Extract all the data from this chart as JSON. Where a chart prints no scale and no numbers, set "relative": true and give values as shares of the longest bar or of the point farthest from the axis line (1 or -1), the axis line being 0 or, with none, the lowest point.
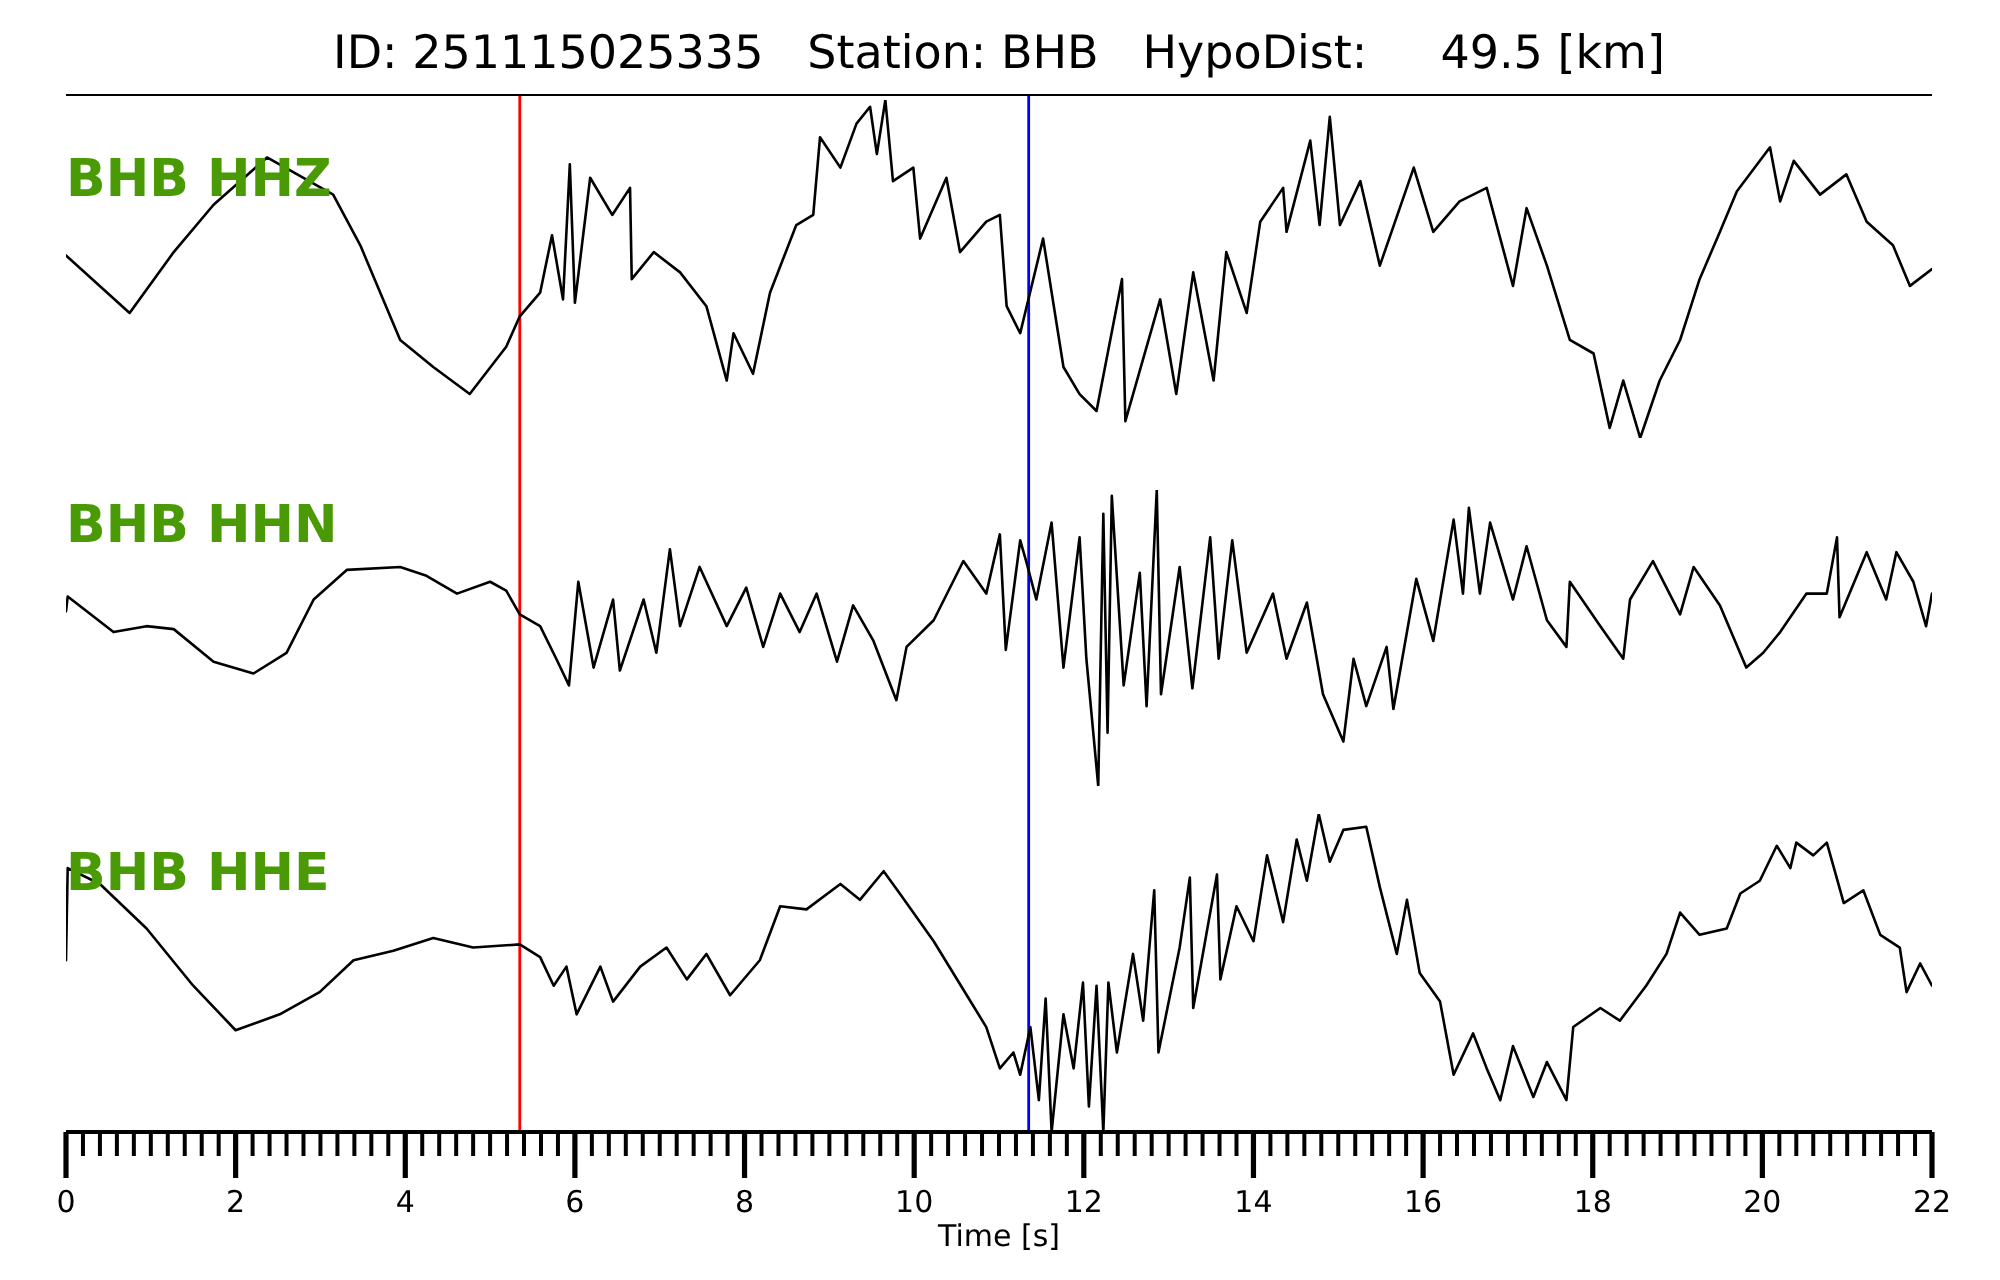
{
  "chart_data": [
    {
      "type": "line",
      "title": "ID: 251115025335   Station: BHB   HypoDist:     49.5 [km]",
      "relative": true,
      "xlim": [
        0,
        22
      ],
      "tick_labels": false,
      "x": [
        0,
        0.75,
        1.27,
        1.74,
        2.37,
        3.15,
        3.47,
        3.94,
        4.33,
        4.76,
        5.19,
        5.35,
        5.59,
        5.73,
        5.86,
        5.94,
        6.0,
        6.18,
        6.44,
        6.65,
        6.67,
        6.93,
        7.24,
        7.55,
        7.79,
        7.87,
        8.1,
        8.3,
        8.61,
        8.81,
        8.89,
        9.13,
        9.32,
        9.48,
        9.56,
        9.66,
        9.75,
        9.99,
        10.07,
        10.38,
        10.54,
        10.85,
        11.01,
        11.09,
        11.25,
        11.52,
        11.76,
        11.95,
        12.15,
        12.45,
        12.49,
        12.9,
        13.09,
        13.29,
        13.53,
        13.68,
        13.92,
        14.08,
        14.35,
        14.39,
        14.67,
        14.78,
        14.9,
        15.02,
        15.26,
        15.49,
        15.89,
        16.12,
        16.43,
        16.75,
        17.06,
        17.22,
        17.46,
        17.73,
        18.01,
        18.2,
        18.36,
        18.56,
        18.79,
        19.03,
        19.26,
        19.5,
        19.7,
        20.09,
        20.21,
        20.37,
        20.68,
        20.99,
        21.23,
        21.54,
        21.74,
        22
      ],
      "series": [
        {
          "name": "BHB HHZ",
          "color": "#000000",
          "values": [
            0.54,
            0.37,
            0.55,
            0.69,
            0.83,
            0.72,
            0.57,
            0.29,
            0.21,
            0.13,
            0.27,
            0.36,
            0.43,
            0.6,
            0.41,
            0.81,
            0.4,
            0.77,
            0.66,
            0.74,
            0.47,
            0.55,
            0.49,
            0.39,
            0.17,
            0.31,
            0.19,
            0.43,
            0.63,
            0.66,
            0.89,
            0.8,
            0.93,
            0.98,
            0.84,
            1.0,
            0.76,
            0.8,
            0.59,
            0.77,
            0.55,
            0.64,
            0.66,
            0.39,
            0.31,
            0.59,
            0.21,
            0.13,
            0.08,
            0.47,
            0.05,
            0.41,
            0.13,
            0.49,
            0.17,
            0.55,
            0.37,
            0.64,
            0.74,
            0.61,
            0.88,
            0.63,
            0.95,
            0.63,
            0.76,
            0.51,
            0.8,
            0.61,
            0.7,
            0.74,
            0.45,
            0.68,
            0.51,
            0.29,
            0.25,
            0.03,
            0.17,
            0,
            0.17,
            0.29,
            0.47,
            0.61,
            0.73,
            0.86,
            0.7,
            0.82,
            0.72,
            0.78,
            0.64,
            0.57,
            0.45,
            0.5
          ]
        }
      ],
      "ref_lines": [
        {
          "axis": "x",
          "value": 5.35,
          "color": "#ff0000"
        },
        {
          "axis": "x",
          "value": 11.35,
          "color": "#0000ff"
        }
      ]
    },
    {
      "type": "line",
      "relative": true,
      "xlim": [
        0,
        22
      ],
      "tick_labels": false,
      "x": [
        0,
        0.02,
        0.56,
        0.95,
        1.27,
        1.74,
        2.21,
        2.6,
        2.92,
        3.31,
        3.94,
        4.25,
        4.61,
        5.0,
        5.19,
        5.35,
        5.59,
        5.78,
        5.93,
        6.04,
        6.22,
        6.45,
        6.53,
        6.81,
        6.96,
        7.12,
        7.24,
        7.47,
        7.79,
        8.02,
        8.22,
        8.42,
        8.65,
        8.85,
        9.09,
        9.28,
        9.52,
        9.79,
        9.91,
        10.23,
        10.58,
        10.85,
        11.01,
        11.08,
        11.25,
        11.32,
        11.44,
        11.62,
        11.76,
        11.95,
        12.03,
        12.17,
        12.23,
        12.28,
        12.33,
        12.47,
        12.66,
        12.74,
        12.86,
        12.91,
        13.13,
        13.28,
        13.49,
        13.59,
        13.75,
        13.92,
        14.23,
        14.39,
        14.63,
        14.82,
        15.06,
        15.18,
        15.33,
        15.57,
        15.65,
        15.92,
        16.12,
        16.36,
        16.47,
        16.54,
        16.67,
        16.79,
        17.06,
        17.22,
        17.46,
        17.69,
        17.73,
        18.09,
        18.36,
        18.44,
        18.71,
        19.03,
        19.19,
        19.5,
        19.81,
        20.01,
        20.21,
        20.52,
        20.76,
        20.88,
        20.91,
        21.23,
        21.46,
        21.58,
        21.78,
        21.93,
        22
      ],
      "series": [
        {
          "name": "BHB HHN",
          "color": "#000000",
          "values": [
            0.59,
            0.64,
            0.52,
            0.54,
            0.53,
            0.42,
            0.38,
            0.45,
            0.63,
            0.73,
            0.74,
            0.71,
            0.65,
            0.69,
            0.66,
            0.58,
            0.54,
            0.43,
            0.34,
            0.69,
            0.4,
            0.63,
            0.39,
            0.63,
            0.45,
            0.8,
            0.54,
            0.74,
            0.54,
            0.67,
            0.47,
            0.65,
            0.52,
            0.65,
            0.42,
            0.61,
            0.49,
            0.29,
            0.47,
            0.56,
            0.76,
            0.65,
            0.85,
            0.46,
            0.83,
            0.76,
            0.63,
            0.89,
            0.4,
            0.84,
            0.43,
            0,
            0.92,
            0.18,
            0.98,
            0.34,
            0.72,
            0.27,
            1.0,
            0.31,
            0.74,
            0.33,
            0.84,
            0.43,
            0.83,
            0.45,
            0.65,
            0.43,
            0.62,
            0.31,
            0.15,
            0.43,
            0.27,
            0.47,
            0.26,
            0.7,
            0.49,
            0.9,
            0.65,
            0.94,
            0.65,
            0.89,
            0.63,
            0.81,
            0.56,
            0.47,
            0.69,
            0.54,
            0.43,
            0.63,
            0.76,
            0.58,
            0.74,
            0.61,
            0.4,
            0.45,
            0.52,
            0.65,
            0.65,
            0.84,
            0.57,
            0.79,
            0.63,
            0.79,
            0.69,
            0.54,
            0.65
          ]
        }
      ],
      "ref_lines": [
        {
          "axis": "x",
          "value": 5.35,
          "color": "#ff0000"
        },
        {
          "axis": "x",
          "value": 11.35,
          "color": "#0000ff"
        }
      ]
    },
    {
      "type": "line",
      "relative": true,
      "xlabel": "Time [s]",
      "xlim": [
        0,
        22
      ],
      "tick_labels": "x",
      "xticks": [
        0,
        {
          "value": 0.2,
          "label": null
        },
        {
          "value": 0.4,
          "label": null
        },
        {
          "value": 0.6,
          "label": null
        },
        {
          "value": 0.8,
          "label": null
        },
        {
          "value": 1,
          "label": null
        },
        {
          "value": 1.2,
          "label": null
        },
        {
          "value": 1.4,
          "label": null
        },
        {
          "value": 1.6,
          "label": null
        },
        {
          "value": 1.8,
          "label": null
        },
        2,
        {
          "value": 2.2,
          "label": null
        },
        {
          "value": 2.4,
          "label": null
        },
        {
          "value": 2.6,
          "label": null
        },
        {
          "value": 2.8,
          "label": null
        },
        {
          "value": 3,
          "label": null
        },
        {
          "value": 3.2,
          "label": null
        },
        {
          "value": 3.4,
          "label": null
        },
        {
          "value": 3.6,
          "label": null
        },
        {
          "value": 3.8,
          "label": null
        },
        4,
        {
          "value": 4.2,
          "label": null
        },
        {
          "value": 4.4,
          "label": null
        },
        {
          "value": 4.6,
          "label": null
        },
        {
          "value": 4.8,
          "label": null
        },
        {
          "value": 5,
          "label": null
        },
        {
          "value": 5.2,
          "label": null
        },
        {
          "value": 5.4,
          "label": null
        },
        {
          "value": 5.6,
          "label": null
        },
        {
          "value": 5.8,
          "label": null
        },
        6,
        {
          "value": 6.2,
          "label": null
        },
        {
          "value": 6.4,
          "label": null
        },
        {
          "value": 6.6,
          "label": null
        },
        {
          "value": 6.8,
          "label": null
        },
        {
          "value": 7,
          "label": null
        },
        {
          "value": 7.2,
          "label": null
        },
        {
          "value": 7.4,
          "label": null
        },
        {
          "value": 7.6,
          "label": null
        },
        {
          "value": 7.8,
          "label": null
        },
        8,
        {
          "value": 8.2,
          "label": null
        },
        {
          "value": 8.4,
          "label": null
        },
        {
          "value": 8.6,
          "label": null
        },
        {
          "value": 8.8,
          "label": null
        },
        {
          "value": 9,
          "label": null
        },
        {
          "value": 9.2,
          "label": null
        },
        {
          "value": 9.4,
          "label": null
        },
        {
          "value": 9.6,
          "label": null
        },
        {
          "value": 9.8,
          "label": null
        },
        10,
        {
          "value": 10.2,
          "label": null
        },
        {
          "value": 10.4,
          "label": null
        },
        {
          "value": 10.6,
          "label": null
        },
        {
          "value": 10.8,
          "label": null
        },
        {
          "value": 11,
          "label": null
        },
        {
          "value": 11.2,
          "label": null
        },
        {
          "value": 11.4,
          "label": null
        },
        {
          "value": 11.6,
          "label": null
        },
        {
          "value": 11.8,
          "label": null
        },
        12,
        {
          "value": 12.2,
          "label": null
        },
        {
          "value": 12.4,
          "label": null
        },
        {
          "value": 12.6,
          "label": null
        },
        {
          "value": 12.8,
          "label": null
        },
        {
          "value": 13,
          "label": null
        },
        {
          "value": 13.2,
          "label": null
        },
        {
          "value": 13.4,
          "label": null
        },
        {
          "value": 13.6,
          "label": null
        },
        {
          "value": 13.8,
          "label": null
        },
        14,
        {
          "value": 14.2,
          "label": null
        },
        {
          "value": 14.4,
          "label": null
        },
        {
          "value": 14.6,
          "label": null
        },
        {
          "value": 14.8,
          "label": null
        },
        {
          "value": 15,
          "label": null
        },
        {
          "value": 15.2,
          "label": null
        },
        {
          "value": 15.4,
          "label": null
        },
        {
          "value": 15.6,
          "label": null
        },
        {
          "value": 15.8,
          "label": null
        },
        16,
        {
          "value": 16.2,
          "label": null
        },
        {
          "value": 16.4,
          "label": null
        },
        {
          "value": 16.6,
          "label": null
        },
        {
          "value": 16.8,
          "label": null
        },
        {
          "value": 17,
          "label": null
        },
        {
          "value": 17.2,
          "label": null
        },
        {
          "value": 17.4,
          "label": null
        },
        {
          "value": 17.6,
          "label": null
        },
        {
          "value": 17.8,
          "label": null
        },
        18,
        {
          "value": 18.2,
          "label": null
        },
        {
          "value": 18.4,
          "label": null
        },
        {
          "value": 18.6,
          "label": null
        },
        {
          "value": 18.8,
          "label": null
        },
        {
          "value": 19,
          "label": null
        },
        {
          "value": 19.2,
          "label": null
        },
        {
          "value": 19.4,
          "label": null
        },
        {
          "value": 19.6,
          "label": null
        },
        {
          "value": 19.8,
          "label": null
        },
        20,
        {
          "value": 20.2,
          "label": null
        },
        {
          "value": 20.4,
          "label": null
        },
        {
          "value": 20.6,
          "label": null
        },
        {
          "value": 20.8,
          "label": null
        },
        {
          "value": 21,
          "label": null
        },
        {
          "value": 21.2,
          "label": null
        },
        {
          "value": 21.4,
          "label": null
        },
        {
          "value": 21.6,
          "label": null
        },
        {
          "value": 21.8,
          "label": null
        },
        22
      ],
      "x": [
        0,
        0.02,
        0.4,
        0.95,
        1.5,
        2.0,
        2.52,
        2.99,
        3.39,
        3.86,
        4.33,
        4.8,
        5.35,
        5.59,
        5.75,
        5.9,
        6.02,
        6.3,
        6.45,
        6.77,
        7.08,
        7.32,
        7.55,
        7.83,
        8.18,
        8.42,
        8.73,
        9.13,
        9.36,
        9.64,
        9.83,
        10.23,
        10.62,
        10.85,
        11.01,
        11.17,
        11.25,
        11.37,
        11.47,
        11.55,
        11.62,
        11.76,
        11.88,
        11.99,
        12.06,
        12.15,
        12.23,
        12.29,
        12.39,
        12.58,
        12.7,
        12.83,
        12.88,
        13.13,
        13.25,
        13.29,
        13.57,
        13.61,
        13.8,
        14.0,
        14.16,
        14.35,
        14.51,
        14.63,
        14.77,
        14.9,
        15.06,
        15.33,
        15.49,
        15.69,
        15.81,
        15.96,
        16.2,
        16.36,
        16.59,
        16.75,
        16.91,
        17.06,
        17.3,
        17.46,
        17.69,
        17.77,
        18.09,
        18.32,
        18.63,
        18.87,
        19.03,
        19.26,
        19.58,
        19.74,
        19.97,
        20.17,
        20.33,
        20.4,
        20.6,
        20.76,
        20.96,
        21.19,
        21.39,
        21.62,
        21.7,
        21.86,
        22
      ],
      "series": [
        {
          "name": "BHB HHE",
          "color": "#000000",
          "values": [
            0.54,
            0.83,
            0.78,
            0.64,
            0.46,
            0.32,
            0.37,
            0.44,
            0.54,
            0.57,
            0.61,
            0.58,
            0.59,
            0.55,
            0.46,
            0.52,
            0.37,
            0.52,
            0.41,
            0.52,
            0.58,
            0.48,
            0.56,
            0.43,
            0.54,
            0.71,
            0.7,
            0.78,
            0.73,
            0.82,
            0.75,
            0.6,
            0.43,
            0.33,
            0.2,
            0.25,
            0.18,
            0.33,
            0.1,
            0.42,
            0,
            0.37,
            0.2,
            0.47,
            0.08,
            0.46,
            0,
            0.47,
            0.25,
            0.56,
            0.35,
            0.76,
            0.25,
            0.58,
            0.8,
            0.39,
            0.81,
            0.48,
            0.71,
            0.6,
            0.87,
            0.66,
            0.92,
            0.79,
            1.0,
            0.85,
            0.95,
            0.96,
            0.77,
            0.56,
            0.73,
            0.5,
            0.41,
            0.18,
            0.31,
            0.2,
            0.1,
            0.27,
            0.11,
            0.22,
            0.1,
            0.33,
            0.39,
            0.35,
            0.46,
            0.56,
            0.69,
            0.62,
            0.64,
            0.75,
            0.79,
            0.9,
            0.83,
            0.91,
            0.87,
            0.91,
            0.72,
            0.76,
            0.62,
            0.58,
            0.44,
            0.53,
            0.46
          ]
        }
      ],
      "ref_lines": [
        {
          "axis": "x",
          "value": 5.35,
          "color": "#ff0000"
        },
        {
          "axis": "x",
          "value": 11.35,
          "color": "#0000ff"
        }
      ]
    }
  ]
}
